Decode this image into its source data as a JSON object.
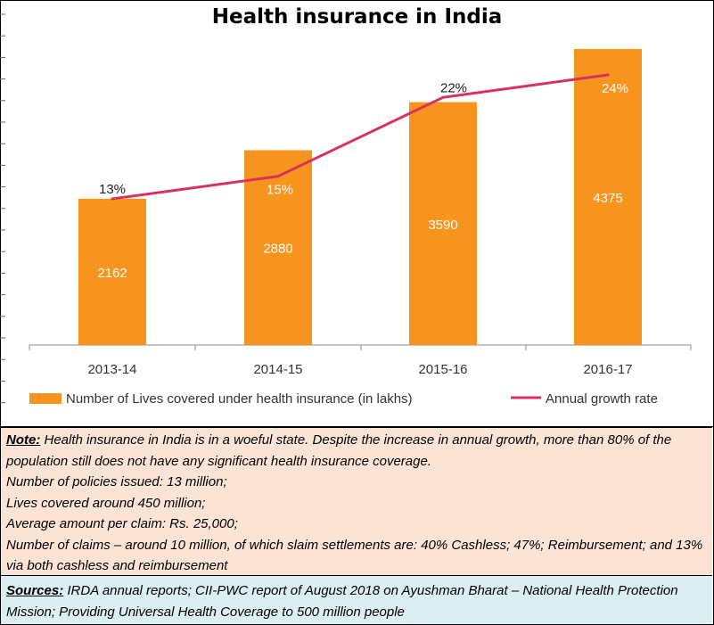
{
  "chart_data": {
    "type": "bar",
    "title": "Health insurance in India",
    "categories": [
      "2013-14",
      "2014-15",
      "2015-16",
      "2016-17"
    ],
    "series": [
      {
        "name": "Number of Lives covered under health insurance (in lakhs)",
        "type": "bar",
        "values": [
          2162,
          2880,
          3590,
          4375
        ],
        "color": "#f7941d"
      },
      {
        "name": "Annual growth rate",
        "type": "line",
        "values": [
          13,
          15,
          22,
          24
        ],
        "labels": [
          "13%",
          "15%",
          "22%",
          "24%"
        ],
        "color": "#d9305e"
      }
    ],
    "legend_position": "bottom",
    "grid": false
  },
  "note": {
    "label": "Note:",
    "text": " Health insurance in India is in a woeful state. Despite the increase in annual growth, more than 80% of the population still does not have any significant health insurance coverage.",
    "lines": [
      "Number of policies issued: 13 million;",
      " Lives covered around 450 million;",
      "Average amount per claim: Rs. 25,000;",
      "Number of claims – around 10 million, of which slaim settlements are: 40% Cashless;  47%; Reimbursement; and 13% via both cashless and reimbursement"
    ]
  },
  "sources": {
    "label": "Sources:",
    "text": " IRDA annual reports; CII-PWC report of August 2018 on Ayushman Bharat – National Health Protection Mission; Providing Universal Health Coverage to 500 million people"
  }
}
